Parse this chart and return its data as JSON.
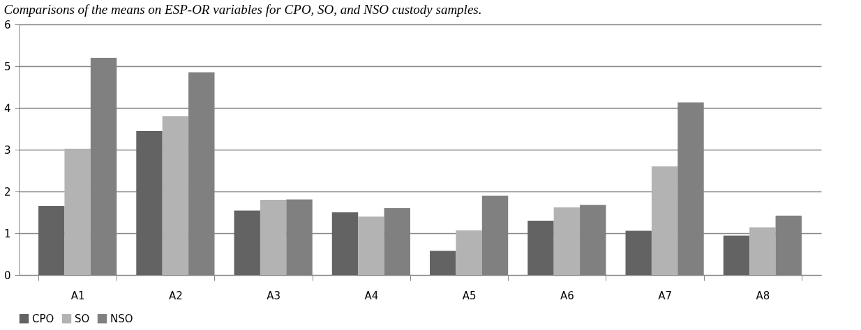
{
  "chart_data": {
    "type": "bar",
    "title": "Comparisons of the means on ESP-OR variables for CPO, SO, and NSO custody samples.",
    "categories": [
      "A1",
      "A2",
      "A3",
      "A4",
      "A5",
      "A6",
      "A7",
      "A8"
    ],
    "series": [
      {
        "name": "CPO",
        "color": "#636363",
        "values": [
          1.65,
          3.45,
          1.54,
          1.5,
          0.58,
          1.3,
          1.06,
          0.94
        ]
      },
      {
        "name": "SO",
        "color": "#b3b3b3",
        "values": [
          3.02,
          3.8,
          1.8,
          1.4,
          1.07,
          1.62,
          2.6,
          1.14
        ]
      },
      {
        "name": "NSO",
        "color": "#808080",
        "values": [
          5.2,
          4.85,
          1.81,
          1.6,
          1.9,
          1.68,
          4.13,
          1.42
        ]
      }
    ],
    "ylim": [
      0,
      6
    ],
    "yticks": [
      0,
      1,
      2,
      3,
      4,
      5,
      6
    ],
    "grid": "y",
    "legend": "bottom"
  }
}
